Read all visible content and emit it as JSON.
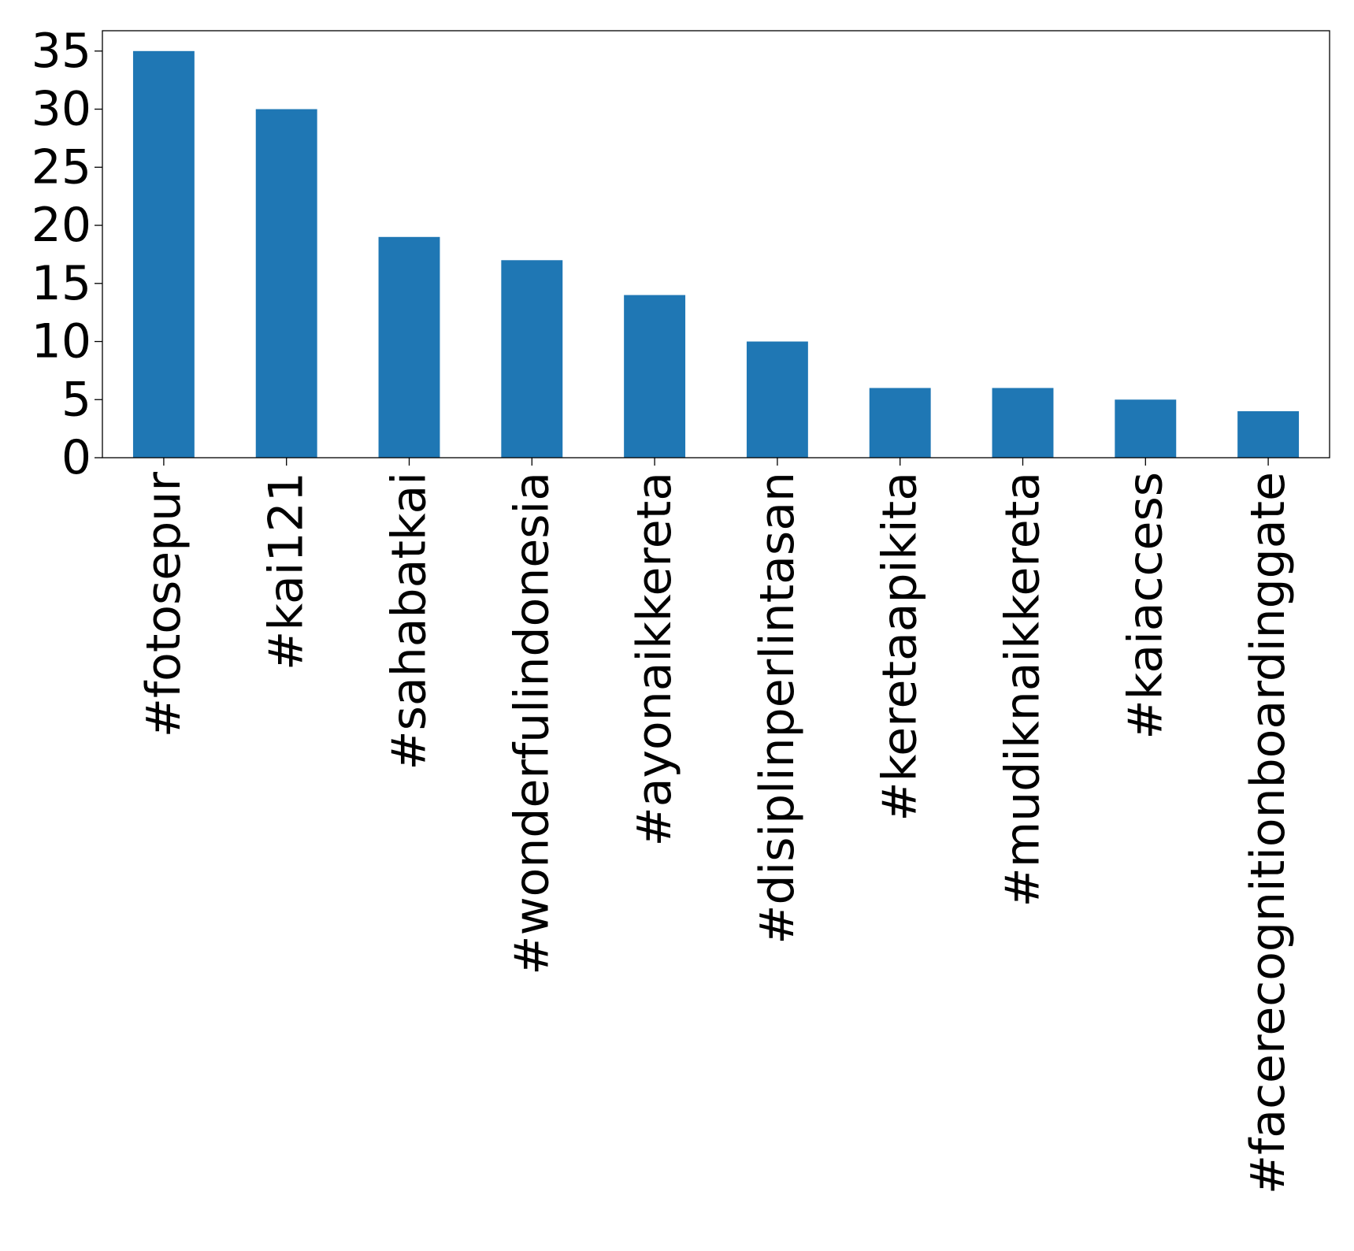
{
  "chart_data": {
    "type": "bar",
    "title": "",
    "xlabel": "",
    "ylabel": "",
    "categories": [
      "#fotosepur",
      "#kai121",
      "#sahabatkai",
      "#wonderfulindonesia",
      "#ayonaikkereta",
      "#disiplinperlintasan",
      "#keretaapikita",
      "#mudiknaikkereta",
      "#kaiaccess",
      "#facerecognitionboardinggate"
    ],
    "values": [
      35,
      30,
      19,
      17,
      14,
      10,
      6,
      6,
      5,
      4
    ],
    "ylim": [
      0,
      36.75
    ],
    "yticks": [
      0,
      5,
      10,
      15,
      20,
      25,
      30,
      35
    ],
    "bar_color": "#1f77b4",
    "grid": false,
    "legend": "none"
  }
}
